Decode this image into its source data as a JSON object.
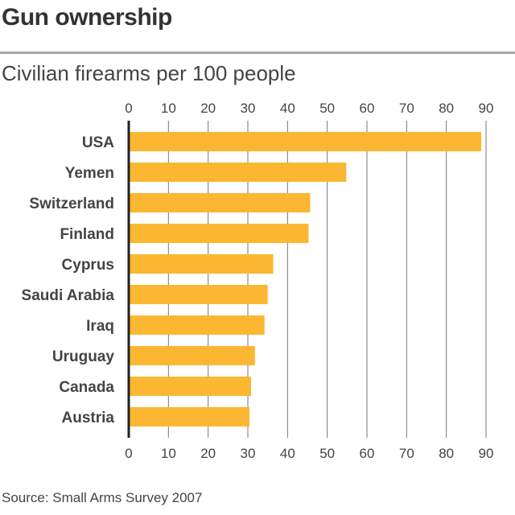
{
  "title": "Gun ownership",
  "subtitle": "Civilian firearms per 100 people",
  "source": "Source: Small Arms Survey 2007",
  "colors": {
    "bar": "#fbb731",
    "grid": "#777777",
    "axis": "#222222",
    "text": "#444444"
  },
  "chart_data": {
    "type": "bar",
    "orientation": "horizontal",
    "title": "",
    "xlabel": "",
    "ylabel": "",
    "categories": [
      "USA",
      "Yemen",
      "Switzerland",
      "Finland",
      "Cyprus",
      "Saudi Arabia",
      "Iraq",
      "Uruguay",
      "Canada",
      "Austria"
    ],
    "values": [
      88.8,
      54.8,
      45.7,
      45.3,
      36.4,
      35.0,
      34.2,
      31.8,
      30.8,
      30.4
    ],
    "xlim": [
      0,
      90
    ],
    "ticks": [
      "0",
      "10",
      "20",
      "30",
      "40",
      "50",
      "60",
      "70",
      "80",
      "90"
    ],
    "tick_positions": [
      "top",
      "bottom"
    ],
    "grid": true,
    "legend": "none"
  }
}
